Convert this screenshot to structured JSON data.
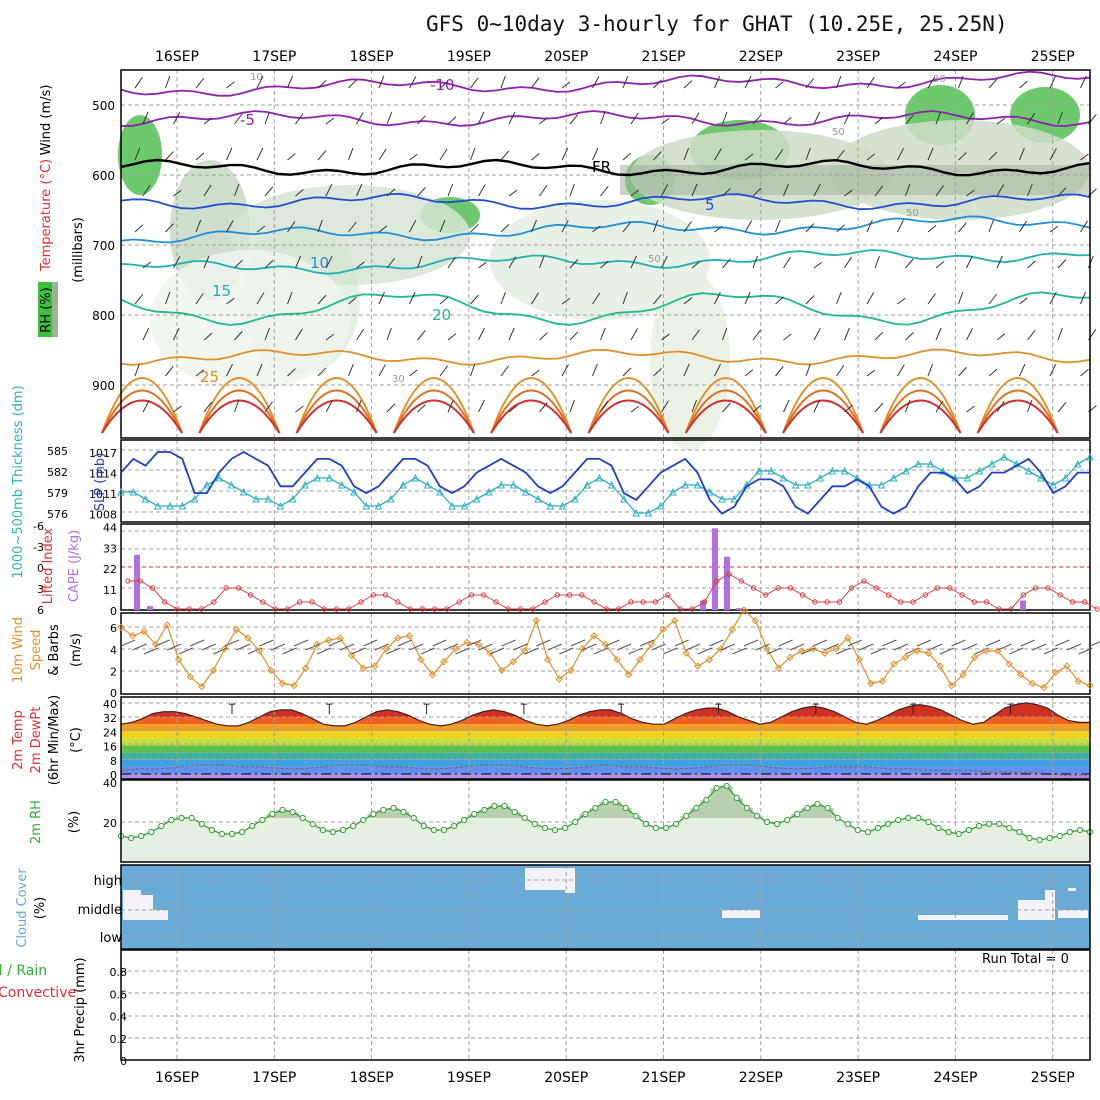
{
  "title": "GFS 0~10day 3-hourly for GHAT (10.25E, 25.25N)",
  "colors": {
    "temperature": "#e03030",
    "rh": "#30b030",
    "cyan": "#30b0c0",
    "blue": "#2040c0",
    "orange": "#e0902a",
    "cape": "#b070e0",
    "cloud": "#6aaad6"
  },
  "chart_data": [
    {
      "type": "contour",
      "name": "vertical-profile",
      "x": [
        "16SEP",
        "17SEP",
        "18SEP",
        "19SEP",
        "20SEP",
        "21SEP",
        "22SEP",
        "23SEP",
        "24SEP",
        "25SEP"
      ],
      "y_ticks": [
        500,
        600,
        700,
        800,
        900
      ],
      "y_label": "(millibars)",
      "legend": {
        "wind": "Wind (m/s)",
        "temp": "Temperature (°C)",
        "rh": "RH (%)"
      },
      "temp_contours": [
        {
          "label": "-10",
          "approx_p": 478
        },
        {
          "label": "-5",
          "approx_p": 520
        },
        {
          "label": "FR",
          "approx_p": 590
        },
        {
          "label": "5",
          "approx_p": 638
        },
        {
          "label": "10",
          "approx_p": 690
        },
        {
          "label": "15",
          "approx_p": 735
        },
        {
          "label": "20",
          "approx_p": 790
        },
        {
          "label": "25",
          "approx_p": 860
        }
      ],
      "rh_labels": [
        "30",
        "50"
      ]
    },
    {
      "type": "line",
      "name": "slp-thickness",
      "y_left_ticks": [
        "585",
        "582",
        "579",
        "576"
      ],
      "y_right_ticks": [
        "1017",
        "1014",
        "1011",
        "1008"
      ],
      "y_left_label": "1000~500mb Thickness (dm)",
      "y_right_label": "SLP (mb)",
      "series": [
        {
          "name": "SLP",
          "values": [
            1014,
            1016,
            1015,
            1017,
            1017,
            1016,
            1011,
            1011,
            1014,
            1016,
            1017,
            1016,
            1015,
            1012,
            1012,
            1014,
            1016,
            1016,
            1015,
            1012,
            1011,
            1012,
            1014,
            1016,
            1016,
            1015,
            1012,
            1011,
            1012,
            1014,
            1015,
            1016,
            1015,
            1014,
            1012,
            1011,
            1012,
            1014,
            1016,
            1016,
            1015,
            1011,
            1010,
            1012,
            1014,
            1015,
            1016,
            1014,
            1010,
            1008,
            1009,
            1012,
            1013,
            1013,
            1012,
            1009,
            1008,
            1010,
            1012,
            1012,
            1013,
            1012,
            1009,
            1008,
            1009,
            1012,
            1014,
            1014,
            1013,
            1011,
            1012,
            1014,
            1014,
            1015,
            1016,
            1014,
            1011,
            1012,
            1014,
            1014
          ]
        },
        {
          "name": "Thickness",
          "values": [
            579,
            579,
            578,
            577,
            577,
            577,
            578,
            580,
            581,
            580,
            579,
            578,
            578,
            577,
            578,
            580,
            581,
            581,
            580,
            579,
            577,
            577,
            578,
            580,
            581,
            580,
            579,
            577,
            577,
            578,
            579,
            580,
            580,
            579,
            578,
            577,
            577,
            578,
            580,
            581,
            580,
            578,
            576,
            576,
            577,
            579,
            580,
            580,
            579,
            578,
            578,
            580,
            582,
            582,
            581,
            580,
            580,
            581,
            582,
            582,
            581,
            580,
            580,
            581,
            582,
            583,
            583,
            582,
            581,
            581,
            582,
            583,
            584,
            583,
            582,
            581,
            580,
            581,
            583,
            584
          ]
        }
      ]
    },
    {
      "type": "bar",
      "name": "cape-lifted-index",
      "y_left_ticks": [
        "-6",
        "-3",
        "0",
        "3",
        "6"
      ],
      "y_right_ticks": [
        "44",
        "33",
        "22",
        "11",
        "0"
      ],
      "y_left_label": "Lifted Index",
      "y_right_label": "CAPE (J/kg)",
      "cape": [
        0,
        29,
        2,
        0,
        0,
        0,
        0,
        0,
        0,
        0,
        0,
        0,
        0,
        0,
        0,
        0,
        0,
        0,
        0,
        0,
        0,
        0,
        0,
        0,
        0,
        0,
        0,
        0,
        0,
        0,
        0,
        0,
        0,
        0,
        0,
        0,
        0,
        0,
        0,
        0,
        0,
        0,
        0,
        0,
        0,
        0,
        0,
        0,
        0,
        0,
        0,
        0,
        0,
        0,
        0,
        0,
        0,
        0,
        0,
        0,
        0,
        0,
        0,
        0,
        0,
        0,
        0,
        0,
        0,
        0,
        0,
        0,
        0,
        0,
        0,
        0,
        0,
        0,
        0,
        0,
        0,
        0,
        0,
        0,
        0,
        0,
        0,
        0,
        0,
        0,
        0,
        0,
        0,
        0,
        0,
        0,
        0,
        0,
        0,
        0,
        0,
        0,
        0,
        0,
        0,
        0,
        0,
        0,
        0,
        0,
        0,
        0,
        0,
        0,
        0,
        0,
        0,
        0,
        0,
        0,
        0,
        0,
        0,
        0,
        0,
        0,
        0,
        0,
        0,
        0,
        0,
        0,
        0,
        0,
        0,
        0,
        0,
        0,
        0,
        0,
        0,
        0,
        0,
        0,
        0,
        0,
        0,
        0,
        0,
        0,
        0,
        0,
        0,
        0,
        0,
        0,
        0,
        0,
        0,
        0,
        0,
        0,
        0,
        0,
        0,
        0,
        0,
        0,
        0,
        0,
        0,
        0,
        0,
        0,
        0,
        0,
        0,
        0,
        0,
        0
      ],
      "lifted_index": [
        2,
        2,
        3,
        5,
        6,
        6,
        6,
        5,
        3,
        3,
        4,
        5,
        6,
        6,
        5,
        5,
        6,
        6,
        6,
        5,
        4,
        4,
        5,
        6,
        6,
        6,
        6,
        5,
        4,
        4,
        5,
        6,
        6,
        6,
        5,
        4,
        4,
        4,
        5,
        6,
        6,
        5,
        5,
        5,
        4,
        6,
        6,
        5,
        2,
        1,
        2,
        3,
        4,
        3,
        3,
        4,
        5,
        5,
        5,
        3,
        2,
        3,
        4,
        5,
        5,
        4,
        3,
        3,
        4,
        5,
        5,
        6,
        6,
        4,
        3,
        3,
        4,
        5,
        5,
        6
      ]
    },
    {
      "type": "line",
      "name": "10m-wind",
      "y_ticks": [
        "6",
        "4",
        "2",
        "0"
      ],
      "y_label": "10m Wind Speed & Barbs (m/s)",
      "values": [
        6.0,
        5.2,
        5.6,
        4.4,
        6.2,
        3.0,
        1.4,
        0.5,
        2.0,
        4.0,
        5.8,
        5.0,
        3.8,
        2.0,
        0.8,
        0.6,
        2.2,
        4.4,
        4.8,
        5.0,
        3.4,
        2.2,
        2.4,
        4.0,
        5.0,
        5.2,
        3.0,
        1.6,
        2.8,
        4.0,
        4.6,
        4.4,
        3.6,
        2.0,
        2.8,
        3.8,
        6.6,
        3.0,
        1.2,
        2.0,
        4.0,
        5.2,
        4.4,
        3.0,
        1.6,
        3.0,
        4.4,
        5.8,
        6.6,
        3.6,
        2.4,
        3.0,
        4.0,
        5.8,
        7.6,
        6.6,
        4.0,
        2.2,
        3.2,
        3.8,
        4.0,
        3.6,
        4.0,
        5.0,
        3.0,
        0.8,
        1.0,
        2.6,
        3.2,
        3.8,
        3.6,
        2.4,
        0.6,
        1.6,
        3.2,
        3.8,
        3.8,
        2.6,
        1.6,
        0.8,
        0.4,
        1.8,
        2.4,
        1.0,
        0.6
      ]
    },
    {
      "type": "area",
      "name": "2m-temp",
      "y_ticks": [
        "40",
        "32",
        "24",
        "16",
        "8",
        "0"
      ],
      "y_label": "2m Temp 2m DewPt (6hr Min/Max) (°C)",
      "temp": [
        28,
        29,
        31,
        34,
        35,
        35,
        34,
        32,
        30,
        28,
        27,
        27,
        29,
        32,
        35,
        36,
        36,
        34,
        31,
        28,
        27,
        27,
        29,
        32,
        35,
        36,
        35,
        33,
        30,
        28,
        27,
        28,
        30,
        33,
        35,
        36,
        35,
        33,
        30,
        28,
        27,
        28,
        30,
        33,
        35,
        36,
        36,
        34,
        31,
        29,
        28,
        28,
        31,
        34,
        36,
        37,
        37,
        35,
        32,
        30,
        28,
        29,
        32,
        35,
        37,
        38,
        37,
        35,
        32,
        29,
        28,
        30,
        33,
        36,
        38,
        39,
        38,
        36,
        33,
        30,
        28,
        29,
        33,
        37,
        39,
        40,
        39,
        37,
        33,
        30,
        29,
        29
      ],
      "dewpt": [
        2,
        3,
        3,
        4,
        5,
        5,
        4,
        4,
        3,
        3,
        4,
        5,
        5,
        4,
        4,
        3,
        3,
        4,
        5,
        5,
        4,
        3,
        3,
        4,
        5,
        4,
        4,
        3,
        3,
        4,
        5,
        5,
        4,
        3,
        3,
        4,
        4,
        4,
        3,
        3,
        2,
        2,
        2,
        1,
        1,
        1,
        0,
        -1,
        -1
      ]
    },
    {
      "type": "area",
      "name": "2m-rh",
      "y_ticks": [
        "40",
        "20"
      ],
      "y_label": "2m RH (%)",
      "values": [
        13,
        12,
        13,
        15,
        18,
        21,
        22,
        22,
        19,
        16,
        14,
        14,
        15,
        18,
        21,
        24,
        26,
        25,
        22,
        19,
        16,
        15,
        16,
        18,
        21,
        24,
        26,
        27,
        25,
        22,
        18,
        16,
        16,
        18,
        21,
        24,
        26,
        28,
        28,
        25,
        22,
        19,
        17,
        16,
        17,
        20,
        24,
        27,
        30,
        30,
        27,
        23,
        19,
        17,
        17,
        19,
        23,
        27,
        31,
        37,
        38,
        32,
        27,
        23,
        20,
        19,
        21,
        24,
        27,
        29,
        27,
        22,
        19,
        16,
        15,
        17,
        19,
        21,
        22,
        22,
        20,
        17,
        15,
        14,
        16,
        18,
        19,
        19,
        17,
        15,
        12,
        11,
        12,
        13,
        15,
        16,
        15
      ]
    },
    {
      "type": "table",
      "name": "cloud-cover",
      "y_ticks": [
        "high",
        "middle",
        "low"
      ],
      "y_label": "Cloud Cover (%)"
    },
    {
      "type": "bar",
      "name": "precip",
      "y_ticks": [
        "0.8",
        "0.6",
        "0.4",
        "0.2",
        "0"
      ],
      "y_label": "3hr Precip (mm)",
      "legend": [
        "Total / Rain",
        "Convective"
      ],
      "run_total": "Run Total = 0"
    }
  ]
}
